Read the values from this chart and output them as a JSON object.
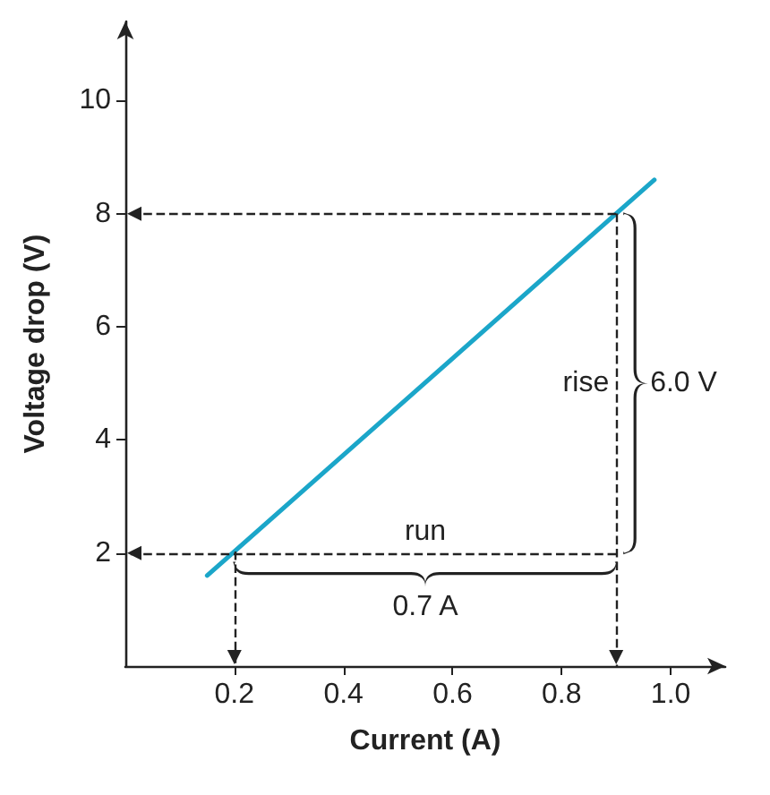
{
  "chart_data": {
    "type": "line",
    "xlabel": "Current (A)",
    "ylabel": "Voltage drop (V)",
    "x": [
      0.15,
      0.97
    ],
    "series": [
      {
        "color": "#1ba6c9",
        "values": [
          1.6,
          8.6
        ]
      }
    ],
    "xlim": [
      0,
      1.1
    ],
    "ylim": [
      0,
      11.4
    ],
    "xticks": [
      0.2,
      0.4,
      0.6,
      0.8,
      {
        "value": 1,
        "label": "1.0"
      }
    ],
    "yticks": [
      2,
      4,
      6,
      8,
      10
    ],
    "ref_lines": [
      {
        "axis": "y",
        "value": 8
      },
      {
        "axis": "y",
        "value": 2
      },
      {
        "axis": "x",
        "value": 0.2
      },
      {
        "axis": "x",
        "value": 0.9
      }
    ],
    "annotations": [
      "rise",
      "6.0 V",
      "run",
      "0.7 A"
    ],
    "grid": false,
    "marker": "none",
    "line_style": "solid"
  }
}
